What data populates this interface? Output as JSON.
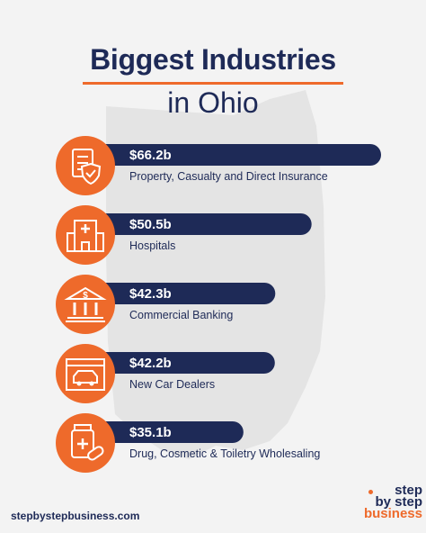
{
  "title": {
    "line1": "Biggest Industries",
    "line2": "in Ohio"
  },
  "colors": {
    "navy": "#1e2a57",
    "orange": "#ee6a2b",
    "background": "#f3f3f3",
    "map": "#e4e4e4"
  },
  "chart_data": {
    "type": "bar",
    "orientation": "horizontal",
    "unit": "$ billions",
    "categories": [
      "Property, Casualty and Direct Insurance",
      "Hospitals",
      "Commercial Banking",
      "New Car Dealers",
      "Drug, Cosmetic & Toiletry Wholesaling"
    ],
    "values": [
      66.2,
      50.5,
      42.3,
      42.2,
      35.1
    ],
    "value_labels": [
      "$66.2b",
      "$50.5b",
      "$42.3b",
      "$42.2b",
      "$35.1b"
    ],
    "icons": [
      "insurance-document-icon",
      "hospital-building-icon",
      "bank-icon",
      "car-dealer-icon",
      "medicine-bottle-icon"
    ]
  },
  "footer": {
    "url": "stepbystepbusiness.com"
  },
  "logo": {
    "line1": "step",
    "line2": "by step",
    "line3": "business"
  }
}
